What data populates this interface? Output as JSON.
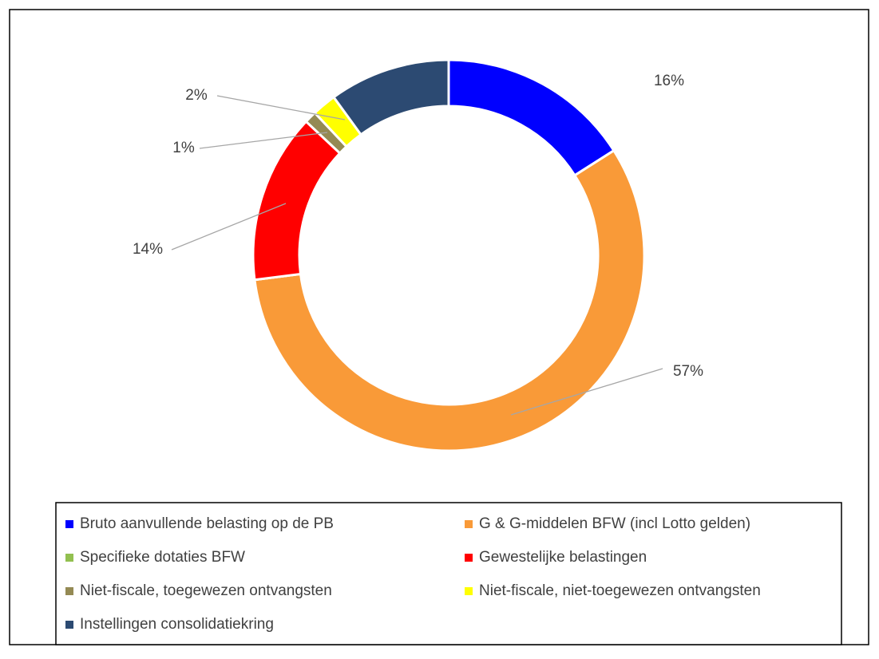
{
  "chart_data": {
    "type": "pie",
    "categories": [
      "Bruto aanvullende belasting op de PB",
      "G & G-middelen BFW (incl Lotto gelden)",
      "Specifieke dotaties BFW",
      "Gewestelijke belastingen",
      "Niet-fiscale, toegewezen ontvangsten",
      "Niet-fiscale, niet-toegewezen ontvangsten",
      "Instellingen consolidatiekring"
    ],
    "values": [
      16,
      57,
      0,
      14,
      1,
      2,
      10
    ],
    "value_labels": [
      "16%",
      "57%",
      null,
      "14%",
      "1%",
      "2%",
      null
    ],
    "colors": [
      "#0000ff",
      "#f99a38",
      "#92c050",
      "#ff0000",
      "#948a54",
      "#ffff00",
      "#2c4a72"
    ],
    "donut": true
  }
}
